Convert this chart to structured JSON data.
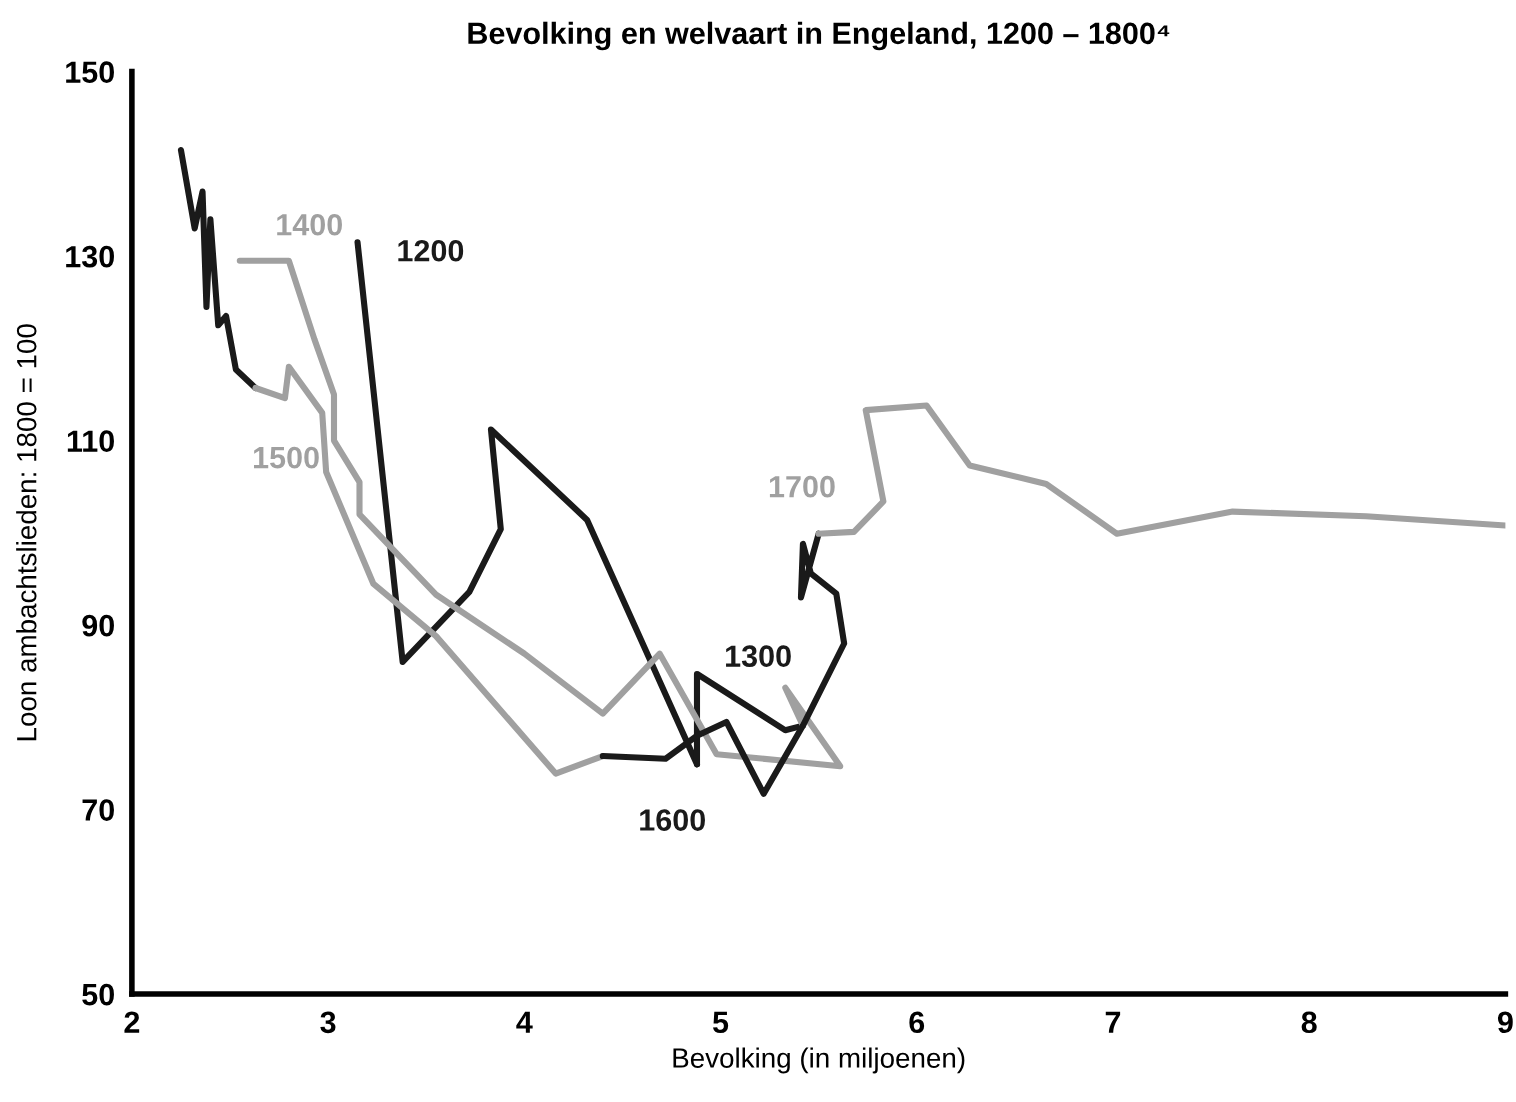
{
  "chart_data": {
    "type": "line",
    "title": "Bevolking en welvaart in Engeland, 1200 – 1800⁴",
    "xlabel": "Bevolking (in miljoenen)",
    "ylabel": "Loon ambachtslieden: 1800 = 100",
    "xlim": [
      2,
      9
    ],
    "xticks": [
      2,
      3,
      4,
      5,
      6,
      7,
      8,
      9
    ],
    "ylim": [
      50,
      150
    ],
    "yticks": [
      50,
      70,
      90,
      110,
      130,
      150
    ],
    "grid": false,
    "legend": false,
    "marker": "none",
    "line_style": "solid",
    "series": [
      {
        "name": "1200",
        "color": "#1a1a1a",
        "x": [
          3.15,
          3.38,
          3.72,
          3.88,
          3.83,
          4.32,
          4.88
        ],
        "values": [
          131.5,
          86.0,
          93.6,
          100.4,
          111.2,
          101.4,
          74.9
        ]
      },
      {
        "name": "1300",
        "color": "#1a1a1a",
        "x": [
          4.88,
          4.88,
          5.33,
          5.42
        ],
        "values": [
          74.9,
          84.7,
          78.6,
          79.1
        ]
      },
      {
        "color": "#1a1a1a",
        "x": [
          2.25,
          2.32,
          2.36,
          2.38,
          2.4,
          2.44,
          2.48,
          2.53,
          2.63
        ],
        "values": [
          141.5,
          133,
          137,
          124.5,
          134,
          122.5,
          123.5,
          117.7,
          115.7
        ]
      },
      {
        "name": "1400",
        "color": "#a0a0a0",
        "x": [
          2.55,
          2.8,
          2.93,
          3.03,
          3.03,
          3.16,
          3.16,
          3.55,
          4.0,
          4.4,
          4.69,
          4.98,
          5.61,
          5.33,
          5.42
        ],
        "values": [
          129.5,
          129.5,
          121,
          115,
          110,
          105.5,
          102,
          93.3,
          86.9,
          80.4,
          86.9,
          76.0,
          74.7,
          83.2,
          79.1
        ]
      },
      {
        "name": "1500",
        "color": "#a0a0a0",
        "x": [
          2.63,
          2.78,
          2.8,
          2.97,
          2.99,
          3.23,
          3.55,
          4.16,
          4.4
        ],
        "values": [
          115.7,
          114.6,
          118,
          113,
          106.6,
          94.5,
          88.8,
          73.9,
          75.8
        ]
      },
      {
        "name": "1600",
        "color": "#1a1a1a",
        "x": [
          4.4,
          4.72,
          4.88,
          5.03,
          5.22,
          5.42,
          5.63,
          5.59,
          5.46,
          5.42,
          5.41,
          5.5
        ],
        "values": [
          75.8,
          75.5,
          78,
          79.5,
          71.7,
          79.1,
          88,
          93.4,
          95.6,
          98.8,
          93,
          99.9
        ]
      },
      {
        "name": "1700",
        "color": "#a0a0a0",
        "x": [
          5.5,
          5.68,
          5.83,
          5.74,
          6.05,
          6.27,
          6.66,
          7.02,
          7.61,
          8.29,
          9.0
        ],
        "values": [
          99.9,
          100.1,
          103.4,
          113.3,
          113.8,
          107.3,
          105.3,
          99.9,
          102.3,
          101.8,
          100.8
        ]
      }
    ]
  }
}
